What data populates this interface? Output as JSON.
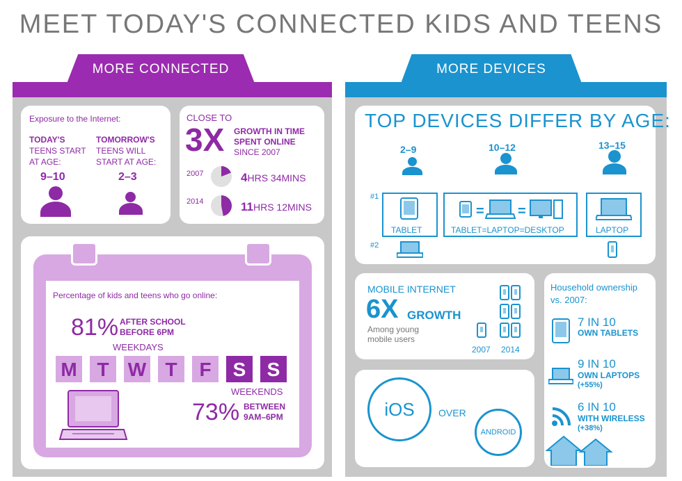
{
  "title": "MEET TODAY'S CONNECTED KIDS AND TEENS",
  "left": {
    "tab": "MORE CONNECTED",
    "exposure": {
      "label": "Exposure to the Internet:",
      "today_head": "TODAY'S",
      "today_sub1": "TEENS START",
      "today_sub2": "AT AGE:",
      "today_age": "9–10",
      "tomorrow_head": "TOMORROW'S",
      "tomorrow_sub1": "TEENS WILL",
      "tomorrow_sub2": "START AT AGE:",
      "tomorrow_age": "2–3"
    },
    "growth": {
      "close_to": "CLOSE TO",
      "multiplier": "3X",
      "line1": "GROWTH IN TIME",
      "line2": "SPENT ONLINE",
      "line3": "SINCE 2007",
      "rows": [
        {
          "year": "2007",
          "hours": "4",
          "hrs_label": "HRS",
          "mins": " 34MINS",
          "fraction": 0.19
        },
        {
          "year": "2014",
          "hours": "11",
          "hrs_label": "HRS",
          "mins": " 12MINS",
          "fraction": 0.47
        }
      ]
    },
    "calendar": {
      "label": "Percentage of kids and teens who go online:",
      "pct1": "81%",
      "pct1_line1": "AFTER SCHOOL",
      "pct1_line2": "BEFORE 6PM",
      "weekdays": "WEEKDAYS",
      "days": [
        "M",
        "T",
        "W",
        "T",
        "F",
        "S",
        "S"
      ],
      "weekends": "WEEKENDS",
      "pct2": "73%",
      "pct2_line1": "BETWEEN",
      "pct2_line2": "9AM–6PM"
    },
    "colors": {
      "accent": "#8e2aa5",
      "light": "#d8a8e2",
      "panel": "#c8c8c8"
    }
  },
  "right": {
    "tab": "MORE DEVICES",
    "devices": {
      "title": "TOP DEVICES DIFFER BY AGE:",
      "ages": [
        "2–9",
        "10–12",
        "13–15"
      ],
      "rank1": "#1",
      "rank2": "#2",
      "labels": [
        "TABLET",
        "TABLET=LAPTOP=DESKTOP",
        "LAPTOP"
      ]
    },
    "mobile": {
      "head": "MOBILE INTERNET",
      "multiplier": "6X",
      "growth": "GROWTH",
      "sub1": "Among young",
      "sub2": "mobile users",
      "year1": "2007",
      "year2": "2014"
    },
    "os": {
      "ios": "iOS",
      "over": "OVER",
      "android": "ANDROID"
    },
    "household": {
      "head1": "Household ownership",
      "head2": "vs. 2007:",
      "items": [
        {
          "ratio": "7 IN 10",
          "desc": "OWN TABLETS",
          "change": ""
        },
        {
          "ratio": "9 IN 10",
          "desc": "OWN LAPTOPS",
          "change": "(+55%)"
        },
        {
          "ratio": "6 IN 10",
          "desc": "WITH WIRELESS",
          "change": "(+38%)"
        }
      ]
    },
    "colors": {
      "accent": "#1a93cf",
      "light": "#8cc8ea"
    }
  }
}
